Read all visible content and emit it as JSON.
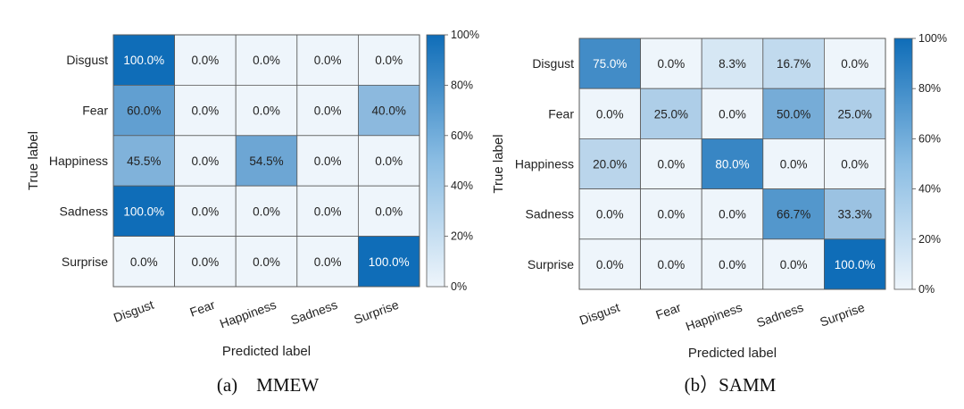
{
  "chart_data": [
    {
      "type": "heatmap",
      "caption": "(a)　MMEW",
      "xlabel": "Predicted label",
      "ylabel": "True label",
      "row_labels": [
        "Disgust",
        "Fear",
        "Happiness",
        "Sadness",
        "Surprise"
      ],
      "col_labels": [
        "Disgust",
        "Fear",
        "Happiness",
        "Sadness",
        "Surprise"
      ],
      "values": [
        [
          100.0,
          0.0,
          0.0,
          0.0,
          0.0
        ],
        [
          60.0,
          0.0,
          0.0,
          0.0,
          40.0
        ],
        [
          45.5,
          0.0,
          54.5,
          0.0,
          0.0
        ],
        [
          100.0,
          0.0,
          0.0,
          0.0,
          0.0
        ],
        [
          0.0,
          0.0,
          0.0,
          0.0,
          100.0
        ]
      ],
      "cell_labels": [
        [
          "100.0%",
          "0.0%",
          "0.0%",
          "0.0%",
          "0.0%"
        ],
        [
          "60.0%",
          "0.0%",
          "0.0%",
          "0.0%",
          "40.0%"
        ],
        [
          "45.5%",
          "0.0%",
          "54.5%",
          "0.0%",
          "0.0%"
        ],
        [
          "100.0%",
          "0.0%",
          "0.0%",
          "0.0%",
          "0.0%"
        ],
        [
          "0.0%",
          "0.0%",
          "0.0%",
          "0.0%",
          "100.0%"
        ]
      ],
      "colorbar": {
        "min": 0,
        "max": 100,
        "ticks": [
          0,
          20,
          40,
          60,
          80,
          100
        ],
        "tick_labels": [
          "0%",
          "20%",
          "40%",
          "60%",
          "80%",
          "100%"
        ]
      }
    },
    {
      "type": "heatmap",
      "caption": "(b）SAMM",
      "xlabel": "Predicted label",
      "ylabel": "True label",
      "row_labels": [
        "Disgust",
        "Fear",
        "Happiness",
        "Sadness",
        "Surprise"
      ],
      "col_labels": [
        "Disgust",
        "Fear",
        "Happiness",
        "Sadness",
        "Surprise"
      ],
      "values": [
        [
          75.0,
          0.0,
          8.3,
          16.7,
          0.0
        ],
        [
          0.0,
          25.0,
          0.0,
          50.0,
          25.0
        ],
        [
          20.0,
          0.0,
          80.0,
          0.0,
          0.0
        ],
        [
          0.0,
          0.0,
          0.0,
          66.7,
          33.3
        ],
        [
          0.0,
          0.0,
          0.0,
          0.0,
          100.0
        ]
      ],
      "cell_labels": [
        [
          "75.0%",
          "0.0%",
          "8.3%",
          "16.7%",
          "0.0%"
        ],
        [
          "0.0%",
          "25.0%",
          "0.0%",
          "50.0%",
          "25.0%"
        ],
        [
          "20.0%",
          "0.0%",
          "80.0%",
          "0.0%",
          "0.0%"
        ],
        [
          "0.0%",
          "0.0%",
          "0.0%",
          "66.7%",
          "33.3%"
        ],
        [
          "0.0%",
          "0.0%",
          "0.0%",
          "0.0%",
          "100.0%"
        ]
      ],
      "colorbar": {
        "min": 0,
        "max": 100,
        "ticks": [
          0,
          20,
          40,
          60,
          80,
          100
        ],
        "tick_labels": [
          "0%",
          "20%",
          "40%",
          "60%",
          "80%",
          "100%"
        ]
      }
    }
  ],
  "colors": {
    "low": "#eef5fb",
    "high": "#0f6db8",
    "grid": "#5a5a5a",
    "text_dark": "#222222",
    "text_light": "#ffffff"
  }
}
